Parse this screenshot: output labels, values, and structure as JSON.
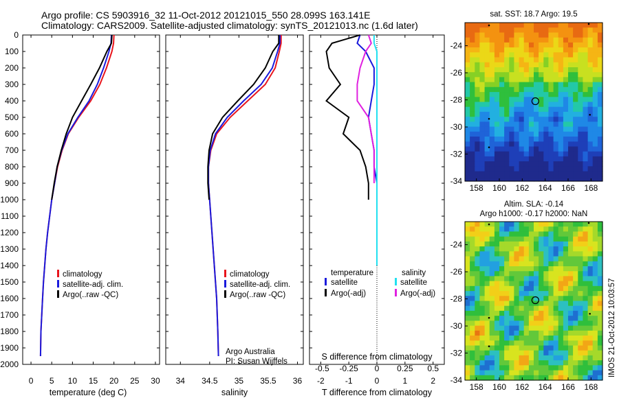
{
  "title": {
    "line1": "Argo profile: CS 5903916_32 11-Oct-2012 20121015_550 28.099S 163.141E",
    "line2": "Climatology: CARS2009. Satellite-adjusted climatology: synTS_20121013.nc (1.6d later)"
  },
  "colors": {
    "climatology": "#e8141c",
    "satellite": "#1a1adc",
    "argo": "#000000",
    "sal_satellite": "#20e0f0",
    "sal_argo": "#e020e0"
  },
  "depth_ticks": [
    "0",
    "100",
    "200",
    "300",
    "400",
    "500",
    "600",
    "700",
    "800",
    "900",
    "1000",
    "1100",
    "1200",
    "1300",
    "1400",
    "1500",
    "1600",
    "1700",
    "1800",
    "1900",
    "2000"
  ],
  "legend1": {
    "items": [
      "climatology",
      "satellite-adj. clim.",
      "Argo(..raw -QC)"
    ]
  },
  "legend3": {
    "temp_title": "temperature",
    "sal_title": "salinity",
    "temp_items": [
      "satellite",
      "Argo(-adj)"
    ],
    "sal_items": [
      "satellite",
      "Argo(-adj)"
    ]
  },
  "credit": {
    "line1": "Argo Australia",
    "line2": "PI: Susan Wijffels"
  },
  "s_diff_label": "S difference from climatology",
  "map_top": {
    "title": "sat. SST: 18.7 Argo: 19.5",
    "yticks": [
      "-24",
      "-26",
      "-28",
      "-30",
      "-32",
      "-34"
    ],
    "xticks": [
      "158",
      "160",
      "162",
      "164",
      "166",
      "168"
    ]
  },
  "map_bottom": {
    "title1": "Altim. SLA: -0.14",
    "title2": "Argo h1000: -0.17 h2000: NaN",
    "yticks": [
      "-24",
      "-26",
      "-28",
      "-30",
      "-32",
      "-34"
    ],
    "xticks": [
      "158",
      "160",
      "162",
      "164",
      "166",
      "168"
    ]
  },
  "side_text": "IMOS 21-Oct-2012 10:03:57",
  "chart_data": [
    {
      "type": "line",
      "xlabel": "temperature (deg C)",
      "xticks": [
        "0",
        "5",
        "10",
        "15",
        "20",
        "25",
        "30"
      ],
      "xlim": [
        -2,
        31
      ],
      "ylim": [
        2000,
        0
      ],
      "series": [
        {
          "name": "climatology",
          "x": [
            20.0,
            19.9,
            19.5,
            18.2,
            16.6,
            14.4,
            11.5,
            9.0,
            7.5,
            6.4,
            5.7,
            5.0,
            4.5,
            4.0,
            3.6,
            3.3,
            3.0,
            2.8,
            2.6,
            2.4,
            2.3
          ],
          "y": [
            0,
            50,
            100,
            200,
            300,
            400,
            500,
            600,
            700,
            800,
            900,
            1000,
            1100,
            1200,
            1300,
            1400,
            1500,
            1600,
            1700,
            1800,
            1950
          ]
        },
        {
          "name": "satellite-adj. clim.",
          "x": [
            19.4,
            19.3,
            18.8,
            17.5,
            16.0,
            14.0,
            11.3,
            8.9,
            7.4,
            6.3,
            5.7,
            5.0,
            4.5,
            4.0,
            3.6,
            3.3,
            3.0,
            2.8,
            2.6,
            2.4,
            2.3
          ],
          "y": [
            0,
            50,
            100,
            200,
            300,
            400,
            500,
            600,
            700,
            800,
            900,
            1000,
            1100,
            1200,
            1300,
            1400,
            1500,
            1600,
            1700,
            1800,
            1950
          ]
        },
        {
          "name": "Argo(..raw -QC)",
          "x": [
            19.5,
            19.4,
            18.3,
            16.5,
            14.4,
            12.2,
            10.0,
            8.5,
            7.3,
            6.3,
            5.6,
            5.0
          ],
          "y": [
            0,
            50,
            100,
            200,
            300,
            400,
            500,
            600,
            700,
            800,
            900,
            1000
          ]
        }
      ]
    },
    {
      "type": "line",
      "xlabel": "salinity",
      "xticks": [
        "34",
        "34.5",
        "35",
        "35.5",
        "36"
      ],
      "xlim": [
        33.75,
        36.1
      ],
      "ylim": [
        2000,
        0
      ],
      "series": [
        {
          "name": "climatology",
          "x": [
            35.72,
            35.72,
            35.69,
            35.62,
            35.45,
            35.15,
            34.85,
            34.62,
            34.52,
            34.48,
            34.48,
            34.5,
            34.52,
            34.54,
            34.56,
            34.58,
            34.6,
            34.62,
            34.64,
            34.65
          ],
          "y": [
            0,
            50,
            100,
            200,
            300,
            400,
            500,
            600,
            700,
            800,
            900,
            1000,
            1100,
            1200,
            1300,
            1400,
            1500,
            1600,
            1800,
            1950
          ]
        },
        {
          "name": "satellite-adj. clim.",
          "x": [
            35.7,
            35.7,
            35.66,
            35.57,
            35.38,
            35.08,
            34.8,
            34.6,
            34.51,
            34.48,
            34.48,
            34.5,
            34.52,
            34.54,
            34.56,
            34.58,
            34.6,
            34.62,
            34.64,
            34.65
          ],
          "y": [
            0,
            50,
            100,
            200,
            300,
            400,
            500,
            600,
            700,
            800,
            900,
            1000,
            1100,
            1200,
            1300,
            1400,
            1500,
            1600,
            1800,
            1950
          ]
        },
        {
          "name": "Argo(..raw -QC)",
          "x": [
            35.68,
            35.68,
            35.58,
            35.45,
            35.25,
            34.98,
            34.72,
            34.55,
            34.49,
            34.47,
            34.47,
            34.49
          ],
          "y": [
            0,
            50,
            100,
            200,
            300,
            400,
            500,
            600,
            700,
            800,
            900,
            1000
          ]
        }
      ]
    },
    {
      "type": "line",
      "xlabel": "T difference from climatology",
      "xticks": [
        "-2",
        "-1",
        "0",
        "1",
        "2"
      ],
      "x2ticks": [
        "-0.5",
        "-0.25",
        "0",
        "0.25",
        "0.5"
      ],
      "xlim": [
        -2.4,
        2.4
      ],
      "ylim": [
        2000,
        0
      ],
      "series": [
        {
          "name": "temperature satellite",
          "x": [
            -0.6,
            -0.7,
            -0.4,
            -0.1,
            -0.1,
            -0.2,
            -0.3,
            -0.2,
            -0.1,
            -0.1,
            0.0,
            0.0,
            0.0,
            0.0,
            0.0,
            0.0
          ],
          "y": [
            0,
            50,
            100,
            200,
            300,
            400,
            500,
            600,
            700,
            800,
            900,
            1000,
            1100,
            1200,
            1300,
            1400
          ]
        },
        {
          "name": "temperature Argo(-adj)",
          "x": [
            -0.6,
            -1.6,
            -1.8,
            -1.7,
            -1.3,
            -1.8,
            -1.0,
            -1.2,
            -0.6,
            -0.4,
            -0.3,
            -0.3
          ],
          "y": [
            0,
            50,
            100,
            200,
            300,
            400,
            500,
            600,
            700,
            800,
            900,
            1000
          ]
        },
        {
          "name": "salinity satellite",
          "x": [
            -0.1,
            -0.1,
            0.0,
            0.0,
            0.0,
            0.0,
            0.0,
            0.0,
            0.0,
            0.0,
            0.0,
            0.0,
            0.0,
            0.0,
            0.0,
            0.0
          ],
          "y": [
            0,
            50,
            100,
            200,
            300,
            400,
            500,
            600,
            700,
            800,
            900,
            1000,
            1100,
            1200,
            1300,
            1400
          ]
        },
        {
          "name": "salinity Argo(-adj)",
          "x": [
            -0.3,
            -0.2,
            -0.4,
            -0.6,
            -0.7,
            -0.7,
            -0.3,
            -0.2,
            -0.1,
            -0.1,
            -0.1
          ],
          "y": [
            0,
            50,
            100,
            200,
            300,
            400,
            500,
            600,
            700,
            800,
            900
          ]
        }
      ]
    }
  ]
}
